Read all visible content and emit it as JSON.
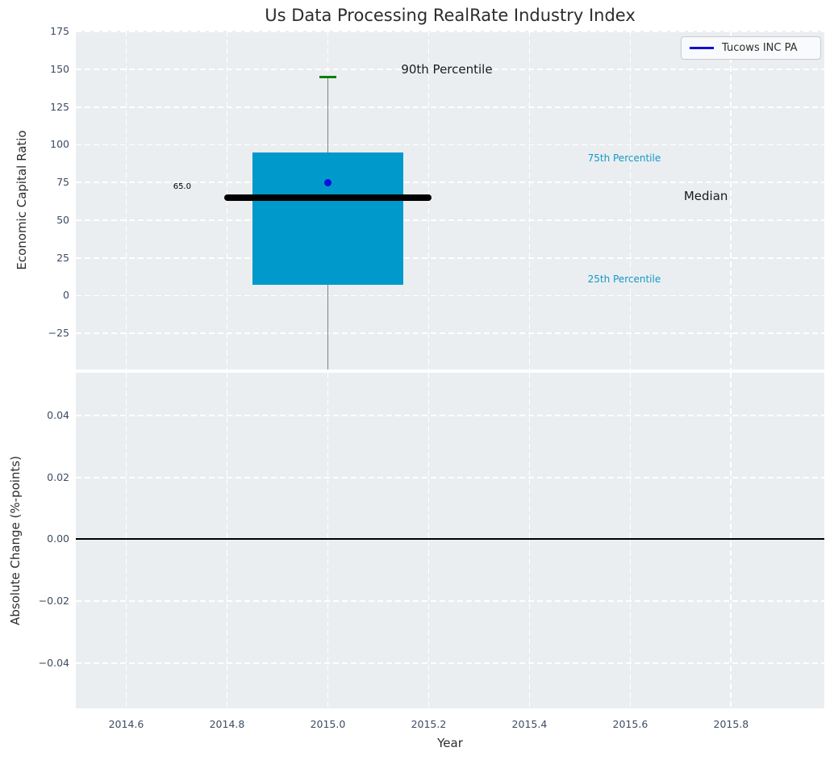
{
  "title": "Us Data Processing RealRate Industry Index",
  "legend": {
    "label": "Tucows INC PA",
    "line_color": "#0f0fdd"
  },
  "colors": {
    "plot_background": "#eaeef0",
    "grid": "#ffffff",
    "box_fill": "#0099cc",
    "median_line": "#000000",
    "whisker": "#808080",
    "p90_cap": "#008000",
    "company_point": "#0f0fdd",
    "zero_line": "#000000",
    "tick_text": "#3d4c63",
    "label_text": "#2d2d2d",
    "percentile_text": "#1498c8"
  },
  "chart_data": [
    {
      "type": "boxplot",
      "title": "Us Data Processing RealRate Industry Index",
      "xlabel": "Year",
      "ylabel": "Economic Capital Ratio",
      "legend_entries": [
        "Tucows INC PA"
      ],
      "legend_position": "upper right",
      "grid": "white dashed on light gray",
      "xlim": [
        2014.5,
        2015.985
      ],
      "ylim": [
        -49,
        175.7
      ],
      "xticks": [
        2014.6,
        2014.8,
        2015.0,
        2015.2,
        2015.4,
        2015.6,
        2015.8
      ],
      "xtick_labels": [],
      "ytick_values": [
        175,
        150,
        125,
        100,
        75,
        50,
        25,
        0,
        -25
      ],
      "ytick_labels": [
        "175",
        "150",
        "125",
        "100",
        "75",
        "50",
        "25",
        "0",
        "−25"
      ],
      "box": {
        "x": 2015.0,
        "q1": 7,
        "median": 65,
        "q3": 95,
        "p90": 145,
        "whisker_bottom_clipped_at_axis": true,
        "box_width": 0.3,
        "median_width": 0.41,
        "cap_width": 0.033,
        "company_point": {
          "name": "Tucows INC PA",
          "x": 2015.0,
          "y": 75
        }
      },
      "annotations": [
        {
          "text": "65.0",
          "x": 2014.711,
          "y": 72,
          "color": "#000000",
          "size": 10
        },
        {
          "text": "90th Percentile",
          "x": 2015.236,
          "y": 150,
          "color": "#1a1a1a",
          "size": 15
        },
        {
          "text": "75th Percentile",
          "x": 2015.588,
          "y": 91,
          "color": "#1498c8",
          "size": 12
        },
        {
          "text": "Median",
          "x": 2015.75,
          "y": 66,
          "color": "#1a1a1a",
          "size": 15
        },
        {
          "text": "25th Percentile",
          "x": 2015.588,
          "y": 11,
          "color": "#1498c8",
          "size": 12
        }
      ]
    },
    {
      "type": "line",
      "xlabel": "Year",
      "ylabel": "Absolute Change (%-points)",
      "grid": "white dashed on light gray",
      "xlim": [
        2014.5,
        2015.985
      ],
      "ylim": [
        -0.0546,
        0.0538
      ],
      "xticks": [
        2014.6,
        2014.8,
        2015.0,
        2015.2,
        2015.4,
        2015.6,
        2015.8
      ],
      "xtick_labels": [
        "2014.6",
        "2014.8",
        "2015.0",
        "2015.2",
        "2015.4",
        "2015.6",
        "2015.8"
      ],
      "ytick_values": [
        0.04,
        0.02,
        0.0,
        -0.02,
        -0.04
      ],
      "ytick_labels": [
        "0.04",
        "0.02",
        "0.00",
        "−0.02",
        "−0.04"
      ],
      "axhline": 0.0,
      "series": []
    }
  ]
}
